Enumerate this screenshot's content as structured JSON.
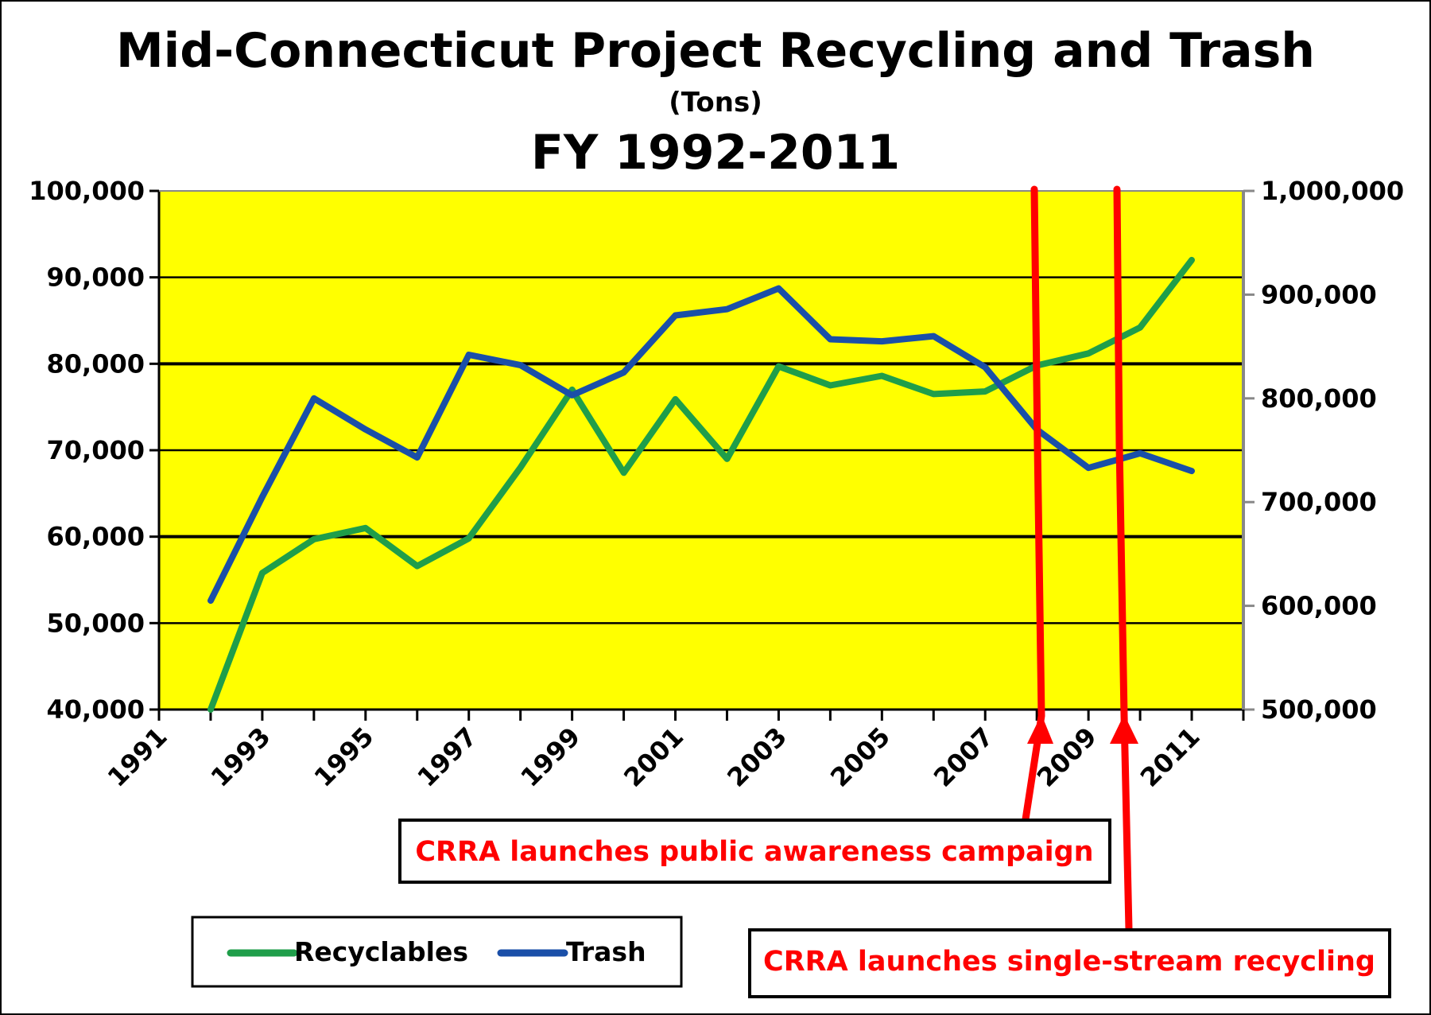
{
  "chart_data": {
    "type": "line",
    "title": "Mid-Connecticut Project Recycling and Trash",
    "subtitle": "(Tons)",
    "title_line3": "FY 1992-2011",
    "x": [
      1992,
      1993,
      1994,
      1995,
      1996,
      1997,
      1998,
      1999,
      2000,
      2001,
      2002,
      2003,
      2004,
      2005,
      2006,
      2007,
      2008,
      2009,
      2010,
      2011
    ],
    "x_tick_labels": [
      "1991",
      "1993",
      "1995",
      "1997",
      "1999",
      "2001",
      "2003",
      "2005",
      "2007",
      "2009",
      "2011"
    ],
    "xlim": [
      1991,
      2012
    ],
    "y_left": {
      "ylim": [
        40000,
        100000
      ],
      "ticks": [
        "40,000",
        "50,000",
        "60,000",
        "70,000",
        "80,000",
        "90,000",
        "100,000"
      ]
    },
    "y_right": {
      "ylim": [
        500000,
        1000000
      ],
      "ticks": [
        "500,000",
        "600,000",
        "700,000",
        "800,000",
        "900,000",
        "1,000,000"
      ]
    },
    "plot_background": "#ffff00",
    "grid": true,
    "legend": {
      "placement": "bottom-left"
    },
    "series": [
      {
        "name": "Recyclables",
        "axis": "left",
        "color": "#1f9e4a",
        "values": [
          40000,
          55800,
          59700,
          61000,
          56600,
          59800,
          68000,
          77000,
          67400,
          75900,
          69000,
          79700,
          77500,
          78600,
          76500,
          76800,
          79800,
          81200,
          84200,
          92000
        ]
      },
      {
        "name": "Trash",
        "axis": "right",
        "color": "#1a4fa8",
        "values": [
          605000,
          705000,
          800000,
          770000,
          743000,
          842000,
          832000,
          803000,
          825000,
          880000,
          886000,
          906000,
          857000,
          855000,
          860000,
          830000,
          770000,
          733000,
          747000,
          730000
        ]
      }
    ],
    "annotations": [
      {
        "text": "CRRA launches public awareness campaign",
        "color": "#ff0000",
        "x": 2007.6
      },
      {
        "text": "CRRA launches single-stream recycling",
        "color": "#ff0000",
        "x": 2009.2
      }
    ]
  }
}
